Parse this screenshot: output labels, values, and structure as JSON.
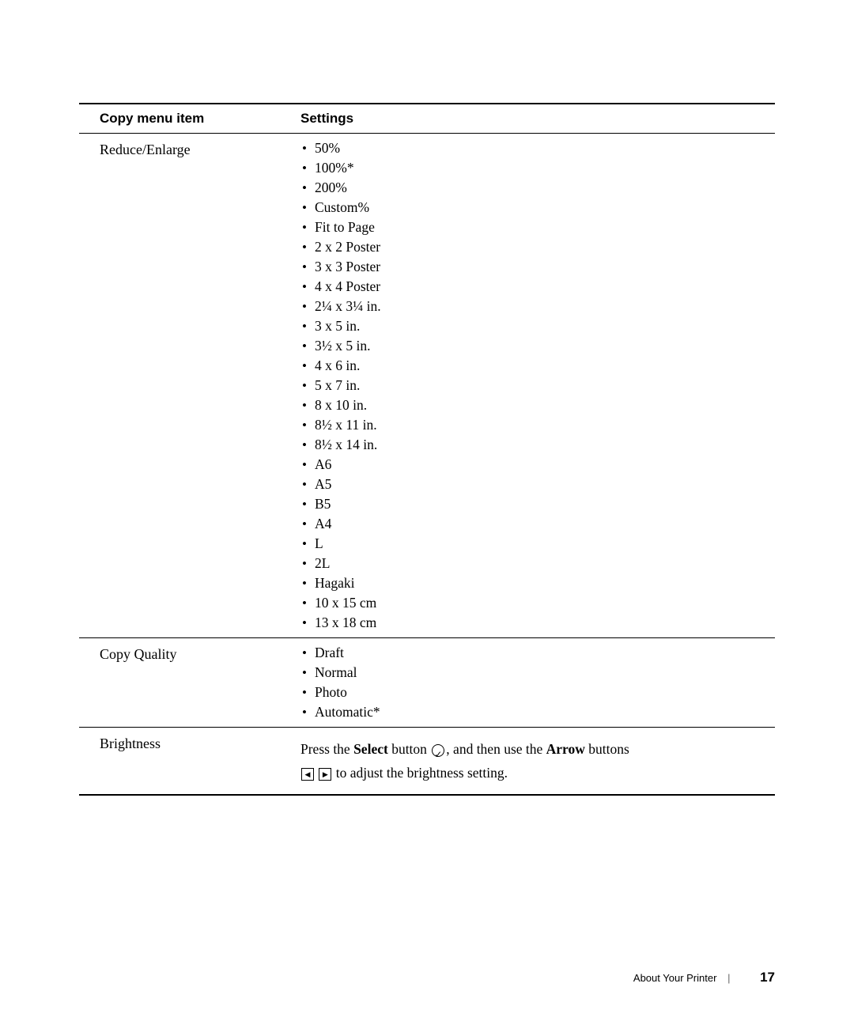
{
  "table": {
    "headers": {
      "left": "Copy menu item",
      "right": "Settings"
    },
    "rows": [
      {
        "name": "Reduce/Enlarge",
        "settings": [
          "50%",
          "100%*",
          "200%",
          "Custom%",
          "Fit to Page",
          "2 x 2 Poster",
          "3 x 3 Poster",
          "4 x 4 Poster",
          "2¼ x 3¼ in.",
          "3 x 5 in.",
          "3½ x 5 in.",
          "4 x 6 in.",
          "5 x 7 in.",
          "8 x 10 in.",
          "8½ x 11 in.",
          "8½ x 14 in.",
          "A6",
          "A5",
          "B5",
          "A4",
          "L",
          "2L",
          "Hagaki",
          "10 x 15 cm",
          "13 x 18 cm"
        ]
      },
      {
        "name": "Copy Quality",
        "settings": [
          "Draft",
          "Normal",
          "Photo",
          "Automatic*"
        ]
      }
    ],
    "brightness": {
      "name": "Brightness",
      "text_parts": {
        "p1": "Press the ",
        "p2": "Select",
        "p3": " button ",
        "p4": ", and then use the ",
        "p5": "Arrow",
        "p6": " buttons ",
        "p7": " to adjust the brightness setting."
      }
    }
  },
  "footer": {
    "section": "About Your Printer",
    "page": "17"
  }
}
